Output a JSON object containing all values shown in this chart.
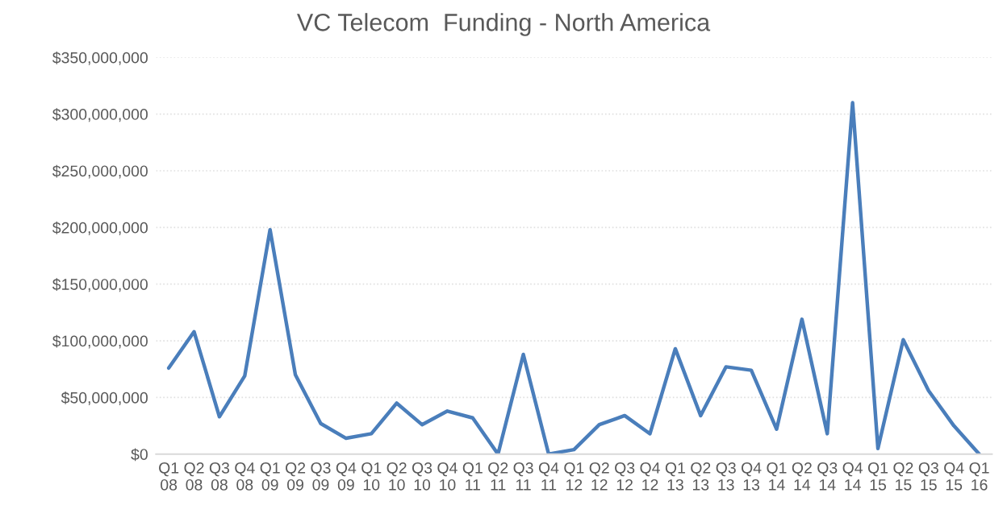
{
  "chart_data": {
    "type": "line",
    "title": "VC Telecom  Funding - North America",
    "categories": [
      "Q1\n08",
      "Q2\n08",
      "Q3\n08",
      "Q4\n08",
      "Q1\n09",
      "Q2\n09",
      "Q3\n09",
      "Q4\n09",
      "Q1\n10",
      "Q2\n10",
      "Q3\n10",
      "Q4\n10",
      "Q1\n11",
      "Q2\n11",
      "Q3\n11",
      "Q4\n11",
      "Q1\n12",
      "Q2\n12",
      "Q3\n12",
      "Q4\n12",
      "Q1\n13",
      "Q2\n13",
      "Q3\n13",
      "Q4\n13",
      "Q1\n14",
      "Q2\n14",
      "Q3\n14",
      "Q4\n14",
      "Q1\n15",
      "Q2\n15",
      "Q3\n15",
      "Q4\n15",
      "Q1\n16"
    ],
    "series": [
      {
        "color": "#4a7ebb",
        "values": [
          76000000,
          108000000,
          33000000,
          69000000,
          198000000,
          70000000,
          27000000,
          14000000,
          18000000,
          45000000,
          26000000,
          38000000,
          32000000,
          0,
          88000000,
          0,
          4000000,
          26000000,
          34000000,
          18000000,
          93000000,
          34000000,
          77000000,
          74000000,
          22000000,
          119000000,
          18000000,
          310000000,
          5000000,
          101000000,
          56000000,
          25000000,
          0
        ]
      }
    ],
    "ylim": [
      0,
      350000000
    ],
    "yticks": [
      {
        "value": 0,
        "label": "$0"
      },
      {
        "value": 50000000,
        "label": "$50,000,000"
      },
      {
        "value": 100000000,
        "label": "$100,000,000"
      },
      {
        "value": 150000000,
        "label": "$150,000,000"
      },
      {
        "value": 200000000,
        "label": "$200,000,000"
      },
      {
        "value": 250000000,
        "label": "$250,000,000"
      },
      {
        "value": 300000000,
        "label": "$300,000,000"
      },
      {
        "value": 350000000,
        "label": "$350,000,000"
      }
    ],
    "grid": "y",
    "marker": "none",
    "line_style": "solid"
  }
}
